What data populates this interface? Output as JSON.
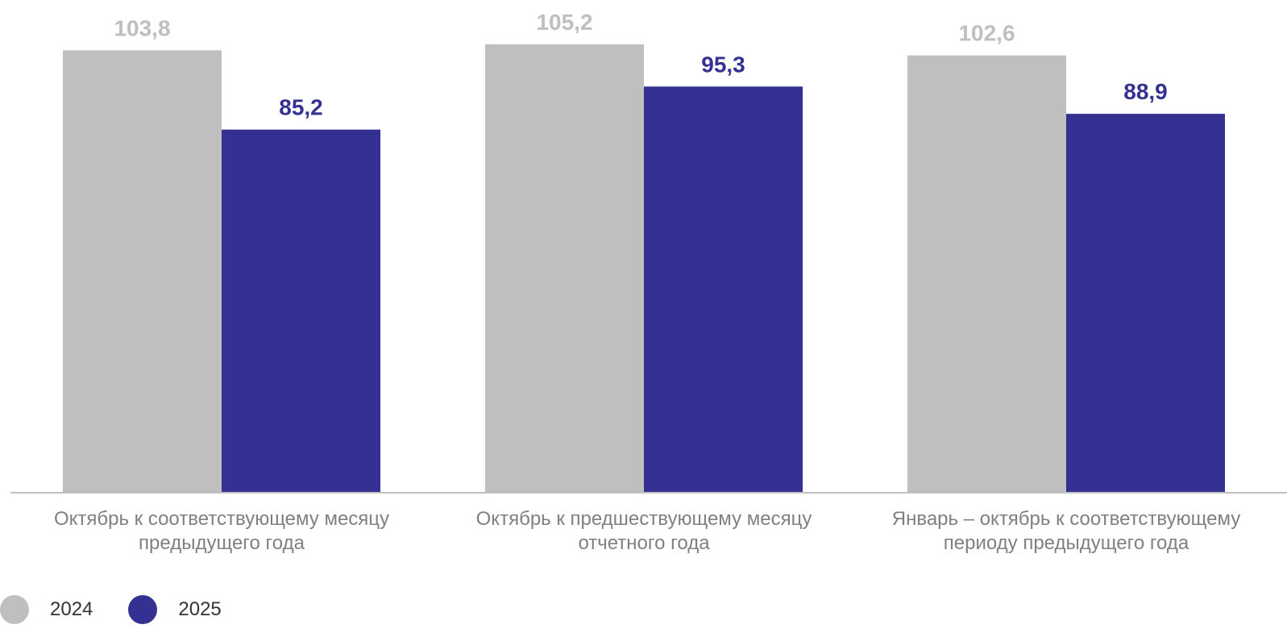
{
  "chart_data": {
    "type": "bar",
    "categories": [
      [
        "Октябрь к соответствующему месяцу",
        "предыдущего года"
      ],
      [
        "Октябрь к предшествующему месяцу",
        "отчетного года"
      ],
      [
        "Январь – октябрь к соответствующему",
        "периоду предыдущего года"
      ]
    ],
    "series": [
      {
        "name": "2024",
        "values": [
          103.8,
          105.2,
          102.6
        ],
        "labels": [
          "103,8",
          "105,2",
          "102,6"
        ],
        "color": "#bfbfbf",
        "label_color": "#bfbfbf"
      },
      {
        "name": "2025",
        "values": [
          85.2,
          95.3,
          88.9
        ],
        "labels": [
          "85,2",
          "95,3",
          "88,9"
        ],
        "color": "#343193",
        "label_color": "#343193"
      }
    ],
    "ylim": [
      0,
      105.2
    ],
    "grid": false,
    "legend_position": "bottom-left",
    "axis_color": "#bfbfbf"
  }
}
